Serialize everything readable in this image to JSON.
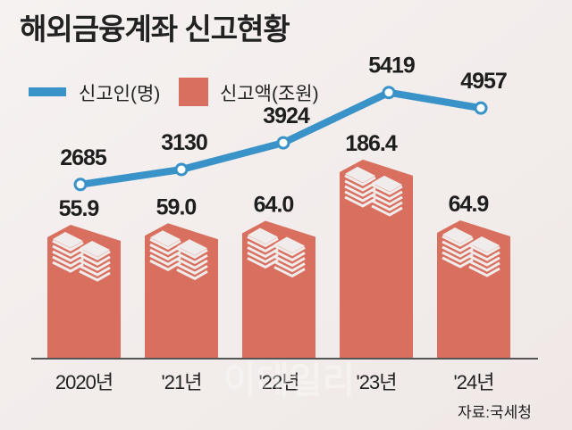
{
  "chart_data": {
    "type": "bar+line",
    "title": "해외금융계좌 신고현황",
    "categories": [
      "2020년",
      "'21년",
      "'22년",
      "'23년",
      "'24년"
    ],
    "series": [
      {
        "name": "신고인(명)",
        "type": "line",
        "color": "#3a93c8",
        "values": [
          2685,
          3130,
          3924,
          5419,
          4957
        ]
      },
      {
        "name": "신고액(조원)",
        "type": "bar",
        "color": "#d9705f",
        "values": [
          55.9,
          59.0,
          64.0,
          186.4,
          64.9
        ]
      }
    ],
    "bar_labels": [
      "55.9",
      "59.0",
      "64.0",
      "186.4",
      "64.9"
    ],
    "line_labels": [
      "2685",
      "3130",
      "3924",
      "5419",
      "4957"
    ],
    "legend": [
      "신고인(명)",
      "신고액(조원)"
    ],
    "legend_position": "top-left",
    "grid": false,
    "source": "자료:국세청",
    "watermark": "이데일리"
  }
}
